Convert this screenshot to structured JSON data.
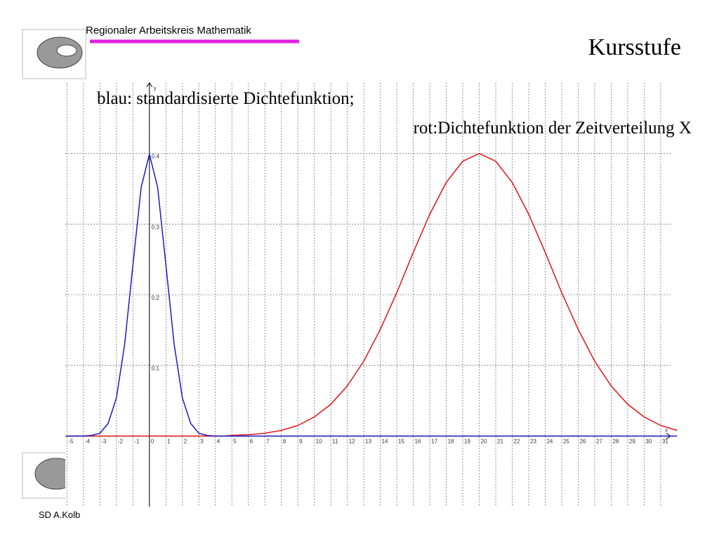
{
  "header": {
    "org": "Regionaler Arbeitskreis Mathematik",
    "course": "Kursstufe",
    "footer": "SD A.Kolb"
  },
  "chart_data": {
    "type": "line",
    "annotations": [
      "blau: standardisierte Dichtefunktion;",
      "rot:Dichtefunktion der Zeitverteilung X"
    ],
    "x_label": "x",
    "y_label": "y",
    "x": [
      -5,
      -4.5,
      -4,
      -3.5,
      -3,
      -2.5,
      -2,
      -1.5,
      -1,
      -0.5,
      0,
      0.5,
      1,
      1.5,
      2,
      2.5,
      3,
      3.5,
      4,
      4.5,
      5,
      6,
      7,
      8,
      9,
      10,
      11,
      12,
      13,
      14,
      15,
      16,
      17,
      18,
      19,
      20,
      21,
      22,
      23,
      24,
      25,
      26,
      27,
      28,
      29,
      30,
      31,
      32
    ],
    "series": [
      {
        "color": "#1a1ac8",
        "values": [
          0,
          0,
          0,
          0.001,
          0.004,
          0.018,
          0.054,
          0.13,
          0.242,
          0.352,
          0.399,
          0.352,
          0.242,
          0.13,
          0.054,
          0.018,
          0.004,
          0.001,
          0,
          0,
          0,
          0,
          0,
          0,
          0,
          0,
          0,
          0,
          0,
          0,
          0,
          0,
          0,
          0,
          0,
          0,
          0,
          0,
          0,
          0,
          0,
          0,
          0,
          0,
          0,
          0,
          0,
          0
        ]
      },
      {
        "color": "#e01414",
        "values": [
          0,
          0,
          0,
          0,
          0,
          0,
          0,
          0,
          0,
          0,
          0,
          0,
          0,
          0,
          0,
          0,
          0,
          0,
          0,
          0,
          0.001,
          0.002,
          0.004,
          0.008,
          0.015,
          0.027,
          0.045,
          0.071,
          0.106,
          0.151,
          0.203,
          0.26,
          0.314,
          0.359,
          0.389,
          0.4,
          0.389,
          0.359,
          0.314,
          0.26,
          0.203,
          0.151,
          0.106,
          0.071,
          0.045,
          0.027,
          0.015,
          0.008
        ]
      }
    ],
    "xlim": [
      -5.1,
      31.6
    ],
    "ylim": [
      -0.1,
      0.5
    ],
    "xticks": [
      -5,
      -4,
      -3,
      -2,
      -1,
      0,
      1,
      2,
      3,
      4,
      5,
      6,
      7,
      8,
      9,
      10,
      11,
      12,
      13,
      14,
      15,
      16,
      17,
      18,
      19,
      20,
      21,
      22,
      23,
      24,
      25,
      26,
      27,
      28,
      29,
      30,
      31
    ],
    "yticks": [
      0.1,
      0.2,
      0.3,
      0.4
    ],
    "grid": true
  }
}
